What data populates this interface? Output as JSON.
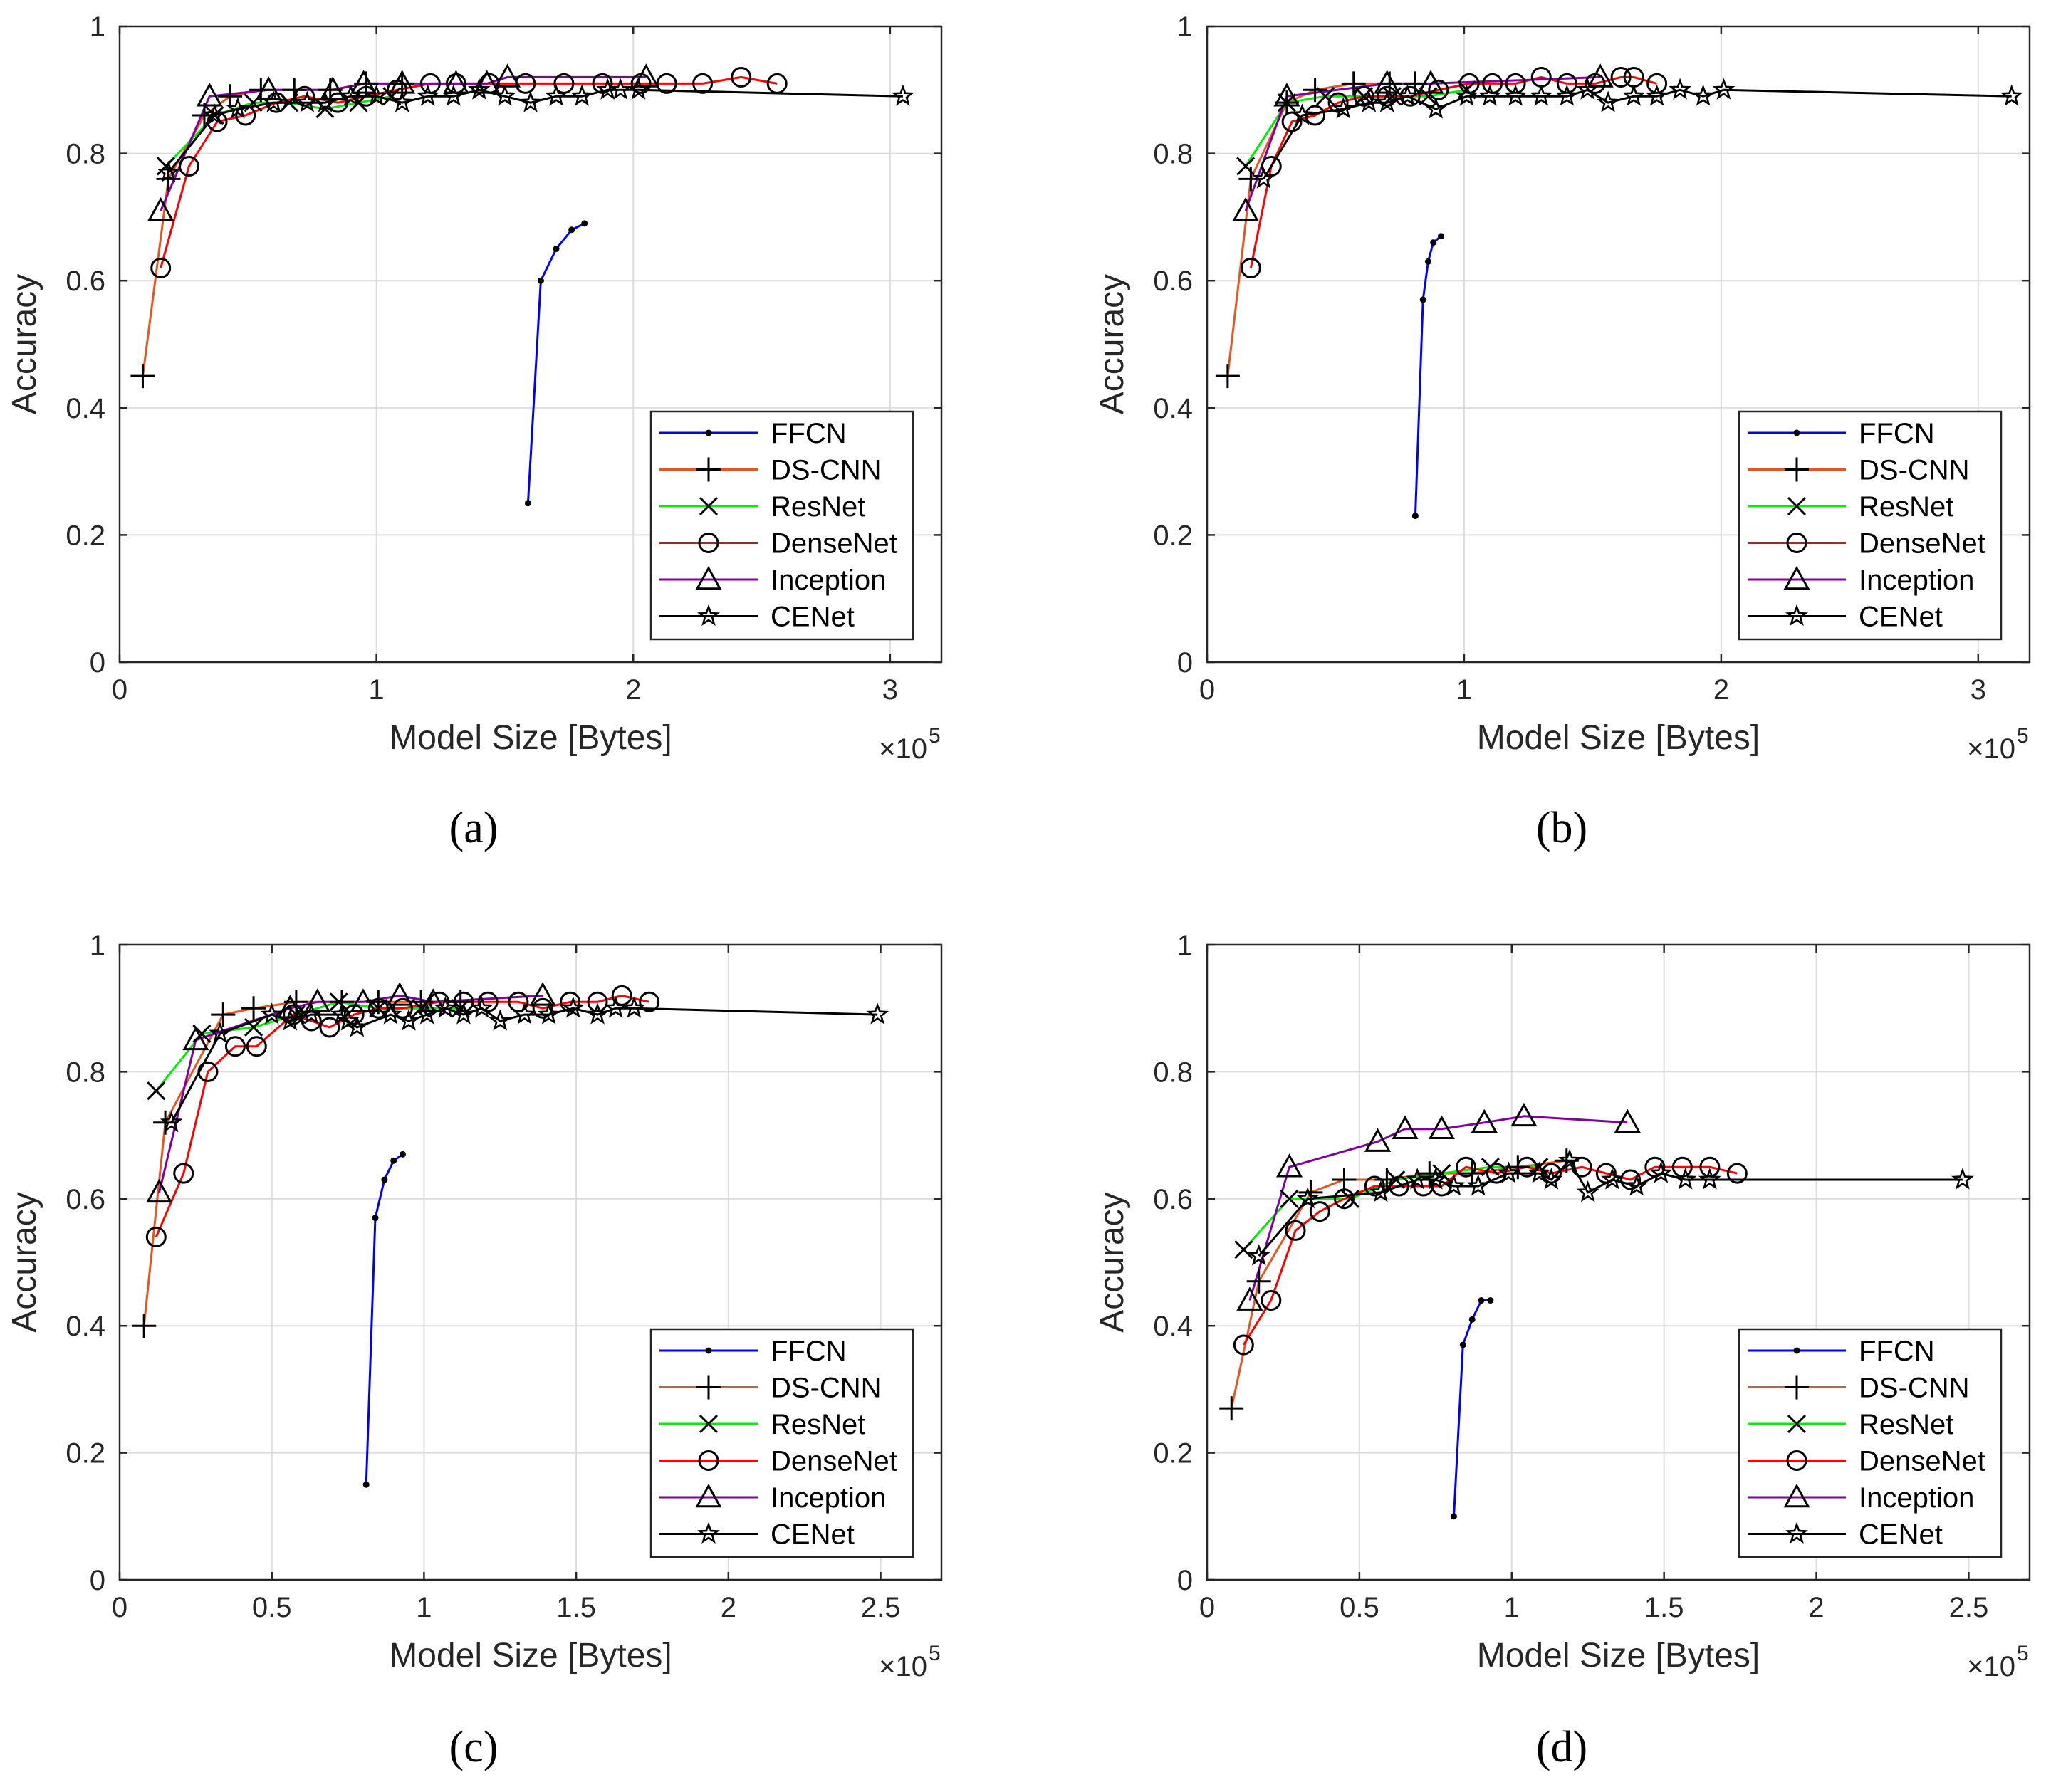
{
  "colors": {
    "FFCN": "#0000ff",
    "DS-CNN": "#e8561f",
    "ResNet": "#00ee00",
    "DenseNet": "#ff0000",
    "Inception": "#8000a0",
    "CENet": "#000000",
    "grid": "#dcdcdc",
    "axis": "#262626"
  },
  "chart_data": [
    {
      "id": "a",
      "type": "line",
      "panel_label": "(a)",
      "xlabel": "Model Size [Bytes]",
      "ylabel": "Accuracy",
      "x_multiplier_base": "×10",
      "x_multiplier_exp": "5",
      "xlim": [
        0,
        3.2
      ],
      "ylim": [
        0,
        1
      ],
      "xticks": [
        0,
        1,
        2,
        3
      ],
      "xtick_labels": [
        "0",
        "1",
        "2",
        "3"
      ],
      "yticks": [
        0,
        0.2,
        0.4,
        0.6,
        0.8,
        1
      ],
      "ytick_labels": [
        "0",
        "0.2",
        "0.4",
        "0.6",
        "0.8",
        "1"
      ],
      "grid": true,
      "legend_position": "bottom-right",
      "series": [
        {
          "name": "FFCN",
          "marker": "dot",
          "x": [
            1.59,
            1.64,
            1.7,
            1.76,
            1.81
          ],
          "y": [
            0.25,
            0.6,
            0.65,
            0.68,
            0.69
          ]
        },
        {
          "name": "DS-CNN",
          "marker": "plus",
          "x": [
            0.09,
            0.19,
            0.33,
            0.43,
            0.55,
            0.68,
            0.82,
            0.96,
            1.1
          ],
          "y": [
            0.45,
            0.76,
            0.86,
            0.89,
            0.9,
            0.9,
            0.9,
            0.91,
            0.91
          ]
        },
        {
          "name": "ResNet",
          "marker": "x",
          "x": [
            0.18,
            0.37,
            0.52,
            0.66,
            0.8,
            0.93,
            1.06
          ],
          "y": [
            0.78,
            0.86,
            0.88,
            0.88,
            0.87,
            0.88,
            0.89
          ]
        },
        {
          "name": "DenseNet",
          "marker": "circle",
          "x": [
            0.16,
            0.27,
            0.38,
            0.49,
            0.61,
            0.72,
            0.85,
            0.96,
            1.08,
            1.21,
            1.31,
            1.44,
            1.58,
            1.73,
            1.88,
            2.03,
            2.13,
            2.27,
            2.42,
            2.56
          ],
          "y": [
            0.62,
            0.78,
            0.85,
            0.86,
            0.88,
            0.89,
            0.88,
            0.89,
            0.9,
            0.91,
            0.91,
            0.91,
            0.91,
            0.91,
            0.91,
            0.91,
            0.91,
            0.91,
            0.92,
            0.91
          ]
        },
        {
          "name": "Inception",
          "marker": "triangle",
          "x": [
            0.16,
            0.35,
            0.58,
            0.83,
            0.95,
            1.1,
            1.31,
            1.43,
            1.51,
            2.05
          ],
          "y": [
            0.71,
            0.89,
            0.9,
            0.9,
            0.91,
            0.91,
            0.91,
            0.91,
            0.92,
            0.92
          ]
        },
        {
          "name": "CENet",
          "marker": "star",
          "x": [
            0.19,
            0.37,
            0.46,
            0.6,
            0.73,
            0.8,
            0.9,
            1.0,
            1.1,
            1.2,
            1.3,
            1.4,
            1.5,
            1.6,
            1.7,
            1.8,
            1.9,
            1.95,
            2.02,
            3.05
          ],
          "y": [
            0.77,
            0.86,
            0.87,
            0.88,
            0.88,
            0.88,
            0.89,
            0.89,
            0.88,
            0.89,
            0.89,
            0.9,
            0.89,
            0.88,
            0.89,
            0.89,
            0.9,
            0.9,
            0.9,
            0.89
          ]
        }
      ]
    },
    {
      "id": "b",
      "type": "line",
      "panel_label": "(b)",
      "xlabel": "Model Size [Bytes]",
      "ylabel": "Accuracy",
      "x_multiplier_base": "×10",
      "x_multiplier_exp": "5",
      "xlim": [
        0,
        3.2
      ],
      "ylim": [
        0,
        1
      ],
      "xticks": [
        0,
        1,
        2,
        3
      ],
      "xtick_labels": [
        "0",
        "1",
        "2",
        "3"
      ],
      "yticks": [
        0,
        0.2,
        0.4,
        0.6,
        0.8,
        1
      ],
      "ytick_labels": [
        "0",
        "0.2",
        "0.4",
        "0.6",
        "0.8",
        "1"
      ],
      "grid": true,
      "legend_position": "bottom-right",
      "series": [
        {
          "name": "FFCN",
          "marker": "dot",
          "x": [
            0.81,
            0.84,
            0.86,
            0.88,
            0.91
          ],
          "y": [
            0.23,
            0.57,
            0.63,
            0.66,
            0.67
          ]
        },
        {
          "name": "DS-CNN",
          "marker": "plus",
          "x": [
            0.08,
            0.17,
            0.31,
            0.42,
            0.57,
            0.71,
            0.81
          ],
          "y": [
            0.45,
            0.76,
            0.88,
            0.9,
            0.91,
            0.91,
            0.91
          ]
        },
        {
          "name": "ResNet",
          "marker": "x",
          "x": [
            0.15,
            0.31,
            0.46,
            0.61,
            0.72,
            0.86,
            1.01
          ],
          "y": [
            0.78,
            0.88,
            0.89,
            0.89,
            0.89,
            0.89,
            0.9
          ]
        },
        {
          "name": "DenseNet",
          "marker": "circle",
          "x": [
            0.17,
            0.25,
            0.33,
            0.42,
            0.51,
            0.61,
            0.7,
            0.79,
            0.9,
            1.02,
            1.11,
            1.2,
            1.3,
            1.4,
            1.51,
            1.61,
            1.66,
            1.75
          ],
          "y": [
            0.62,
            0.78,
            0.85,
            0.86,
            0.88,
            0.89,
            0.89,
            0.89,
            0.9,
            0.91,
            0.91,
            0.91,
            0.92,
            0.91,
            0.91,
            0.92,
            0.92,
            0.91
          ]
        },
        {
          "name": "Inception",
          "marker": "triangle",
          "x": [
            0.15,
            0.31,
            0.7,
            0.87,
            1.53
          ],
          "y": [
            0.71,
            0.89,
            0.91,
            0.91,
            0.92
          ]
        },
        {
          "name": "CENet",
          "marker": "star",
          "x": [
            0.22,
            0.37,
            0.53,
            0.63,
            0.7,
            0.78,
            0.89,
            1.01,
            1.1,
            1.2,
            1.3,
            1.4,
            1.48,
            1.56,
            1.66,
            1.75,
            1.84,
            1.93,
            2.01,
            3.13
          ],
          "y": [
            0.76,
            0.86,
            0.87,
            0.88,
            0.88,
            0.89,
            0.87,
            0.89,
            0.89,
            0.89,
            0.89,
            0.89,
            0.9,
            0.88,
            0.89,
            0.89,
            0.9,
            0.89,
            0.9,
            0.89
          ]
        }
      ]
    },
    {
      "id": "c",
      "type": "line",
      "panel_label": "(c)",
      "xlabel": "Model Size [Bytes]",
      "ylabel": "Accuracy",
      "x_multiplier_base": "×10",
      "x_multiplier_exp": "5",
      "xlim": [
        0,
        2.7
      ],
      "ylim": [
        0,
        1
      ],
      "xticks": [
        0,
        0.5,
        1,
        1.5,
        2,
        2.5
      ],
      "xtick_labels": [
        "0",
        "0.5",
        "1",
        "1.5",
        "2",
        "2.5"
      ],
      "yticks": [
        0,
        0.2,
        0.4,
        0.6,
        0.8,
        1
      ],
      "ytick_labels": [
        "0",
        "0.2",
        "0.4",
        "0.6",
        "0.8",
        "1"
      ],
      "grid": true,
      "legend_position": "bottom-right",
      "series": [
        {
          "name": "FFCN",
          "marker": "dot",
          "x": [
            0.81,
            0.84,
            0.87,
            0.9,
            0.93
          ],
          "y": [
            0.15,
            0.57,
            0.63,
            0.66,
            0.67
          ]
        },
        {
          "name": "DS-CNN",
          "marker": "plus",
          "x": [
            0.08,
            0.15,
            0.34,
            0.44,
            0.58,
            0.73,
            0.85,
            0.99,
            1.12
          ],
          "y": [
            0.4,
            0.72,
            0.89,
            0.9,
            0.91,
            0.91,
            0.91,
            0.91,
            0.91
          ]
        },
        {
          "name": "ResNet",
          "marker": "x",
          "x": [
            0.12,
            0.27,
            0.44,
            0.58,
            0.72,
            0.85,
            0.99,
            1.12
          ],
          "y": [
            0.77,
            0.86,
            0.87,
            0.89,
            0.91,
            0.9,
            0.9,
            0.9
          ]
        },
        {
          "name": "DenseNet",
          "marker": "circle",
          "x": [
            0.12,
            0.21,
            0.29,
            0.38,
            0.45,
            0.57,
            0.63,
            0.69,
            0.77,
            0.85,
            0.93,
            1.05,
            1.13,
            1.21,
            1.31,
            1.39,
            1.48,
            1.57,
            1.65,
            1.74
          ],
          "y": [
            0.54,
            0.64,
            0.8,
            0.84,
            0.84,
            0.89,
            0.88,
            0.87,
            0.89,
            0.9,
            0.9,
            0.91,
            0.91,
            0.91,
            0.91,
            0.9,
            0.91,
            0.91,
            0.92,
            0.91
          ]
        },
        {
          "name": "Inception",
          "marker": "triangle",
          "x": [
            0.13,
            0.25,
            0.56,
            0.65,
            0.8,
            0.92,
            1.03,
            1.39
          ],
          "y": [
            0.61,
            0.85,
            0.9,
            0.91,
            0.91,
            0.92,
            0.91,
            0.92
          ]
        },
        {
          "name": "CENet",
          "marker": "star",
          "x": [
            0.17,
            0.33,
            0.5,
            0.56,
            0.63,
            0.73,
            0.75,
            0.78,
            0.89,
            0.95,
            1.01,
            1.07,
            1.13,
            1.19,
            1.25,
            1.33,
            1.41,
            1.49,
            1.57,
            1.63,
            1.69,
            2.49
          ],
          "y": [
            0.72,
            0.86,
            0.89,
            0.88,
            0.89,
            0.89,
            0.88,
            0.87,
            0.89,
            0.88,
            0.89,
            0.9,
            0.89,
            0.9,
            0.88,
            0.89,
            0.89,
            0.9,
            0.89,
            0.9,
            0.9,
            0.89
          ]
        }
      ]
    },
    {
      "id": "d",
      "type": "line",
      "panel_label": "(d)",
      "xlabel": "Model Size [Bytes]",
      "ylabel": "Accuracy",
      "x_multiplier_base": "×10",
      "x_multiplier_exp": "5",
      "xlim": [
        0,
        2.7
      ],
      "ylim": [
        0,
        1
      ],
      "xticks": [
        0,
        0.5,
        1,
        1.5,
        2,
        2.5
      ],
      "xtick_labels": [
        "0",
        "0.5",
        "1",
        "1.5",
        "2",
        "2.5"
      ],
      "yticks": [
        0,
        0.2,
        0.4,
        0.6,
        0.8,
        1
      ],
      "ytick_labels": [
        "0",
        "0.2",
        "0.4",
        "0.6",
        "0.8",
        "1"
      ],
      "grid": true,
      "legend_position": "bottom-right",
      "series": [
        {
          "name": "FFCN",
          "marker": "dot",
          "x": [
            0.81,
            0.84,
            0.87,
            0.9,
            0.93
          ],
          "y": [
            0.1,
            0.37,
            0.41,
            0.44,
            0.44
          ]
        },
        {
          "name": "DS-CNN",
          "marker": "plus",
          "x": [
            0.08,
            0.17,
            0.34,
            0.45,
            0.59,
            0.73,
            0.87,
            1.02,
            1.18
          ],
          "y": [
            0.27,
            0.47,
            0.61,
            0.63,
            0.63,
            0.64,
            0.64,
            0.65,
            0.66
          ]
        },
        {
          "name": "ResNet",
          "marker": "x",
          "x": [
            0.12,
            0.27,
            0.47,
            0.62,
            0.77,
            0.93,
            1.09
          ],
          "y": [
            0.52,
            0.6,
            0.6,
            0.63,
            0.64,
            0.65,
            0.65
          ]
        },
        {
          "name": "DenseNet",
          "marker": "circle",
          "x": [
            0.12,
            0.21,
            0.29,
            0.37,
            0.45,
            0.55,
            0.63,
            0.71,
            0.77,
            0.85,
            0.95,
            1.05,
            1.13,
            1.23,
            1.31,
            1.39,
            1.47,
            1.56,
            1.65,
            1.74
          ],
          "y": [
            0.37,
            0.44,
            0.55,
            0.58,
            0.6,
            0.62,
            0.62,
            0.62,
            0.62,
            0.65,
            0.64,
            0.65,
            0.64,
            0.65,
            0.64,
            0.63,
            0.65,
            0.65,
            0.65,
            0.64
          ]
        },
        {
          "name": "Inception",
          "marker": "triangle",
          "x": [
            0.14,
            0.27,
            0.56,
            0.65,
            0.77,
            0.91,
            1.04,
            1.38
          ],
          "y": [
            0.44,
            0.65,
            0.69,
            0.71,
            0.71,
            0.72,
            0.73,
            0.72
          ]
        },
        {
          "name": "CENet",
          "marker": "star",
          "x": [
            0.17,
            0.33,
            0.57,
            0.69,
            0.75,
            0.81,
            0.89,
            0.99,
            1.09,
            1.13,
            1.19,
            1.25,
            1.33,
            1.41,
            1.49,
            1.57,
            1.65,
            2.48
          ],
          "y": [
            0.51,
            0.6,
            0.61,
            0.63,
            0.63,
            0.62,
            0.62,
            0.64,
            0.64,
            0.63,
            0.66,
            0.61,
            0.63,
            0.62,
            0.64,
            0.63,
            0.63,
            0.63
          ]
        }
      ]
    }
  ]
}
